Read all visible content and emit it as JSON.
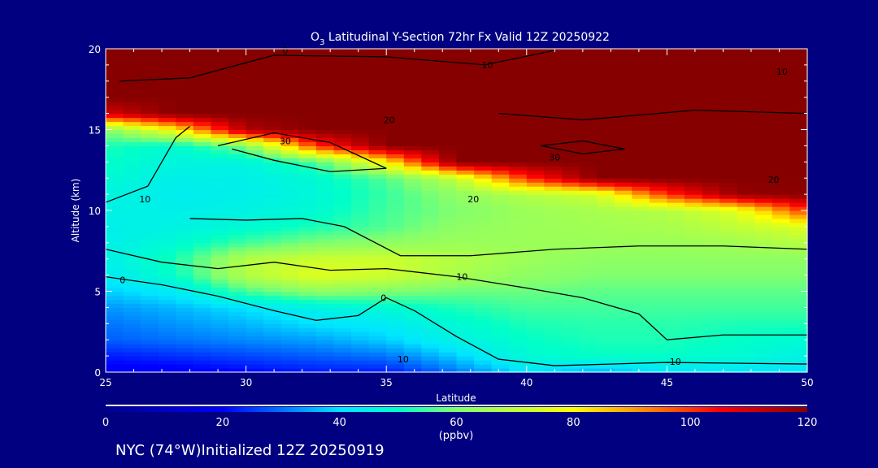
{
  "chart_data": {
    "type": "heatmap",
    "title_species": "O",
    "title_sub": "3",
    "title_rest": " Latitudinal Y-Section 72hr  Fx Valid 12Z 20250922",
    "xlabel": "Latitude",
    "ylabel": "Altitude (km)",
    "xlim": [
      25,
      50
    ],
    "ylim": [
      0,
      20
    ],
    "xticks": [
      25,
      30,
      35,
      40,
      45,
      50
    ],
    "yticks": [
      0,
      5,
      10,
      15,
      20
    ],
    "lat": [
      25,
      27.5,
      30,
      32.5,
      35,
      37.5,
      40,
      42.5,
      45,
      47.5,
      50
    ],
    "alt": [
      0,
      1,
      2,
      3,
      4,
      5,
      6,
      7,
      8,
      9,
      10,
      11,
      12,
      13,
      14,
      15,
      16,
      17,
      18,
      19,
      20
    ],
    "values": [
      [
        18,
        18,
        20,
        22,
        22,
        30,
        40,
        35,
        40,
        40,
        40
      ],
      [
        22,
        24,
        26,
        28,
        30,
        38,
        48,
        50,
        50,
        48,
        45
      ],
      [
        28,
        30,
        32,
        34,
        38,
        45,
        50,
        52,
        52,
        50,
        48
      ],
      [
        30,
        33,
        36,
        40,
        42,
        48,
        52,
        53,
        53,
        52,
        52
      ],
      [
        33,
        36,
        40,
        45,
        48,
        52,
        55,
        55,
        55,
        55,
        55
      ],
      [
        38,
        42,
        55,
        62,
        60,
        58,
        58,
        57,
        57,
        57,
        57
      ],
      [
        42,
        50,
        68,
        75,
        72,
        66,
        62,
        60,
        60,
        60,
        60
      ],
      [
        44,
        52,
        68,
        72,
        72,
        68,
        64,
        62,
        62,
        62,
        62
      ],
      [
        44,
        48,
        55,
        60,
        62,
        64,
        64,
        64,
        64,
        65,
        68
      ],
      [
        44,
        45,
        48,
        52,
        56,
        62,
        64,
        65,
        66,
        70,
        75
      ],
      [
        45,
        44,
        45,
        48,
        55,
        60,
        64,
        66,
        68,
        75,
        100
      ],
      [
        46,
        43,
        44,
        47,
        54,
        62,
        68,
        72,
        100,
        118,
        120
      ],
      [
        48,
        44,
        44,
        48,
        56,
        70,
        100,
        120,
        120,
        120,
        120
      ],
      [
        50,
        46,
        46,
        55,
        80,
        120,
        120,
        120,
        120,
        120,
        120
      ],
      [
        52,
        48,
        60,
        100,
        120,
        120,
        120,
        120,
        120,
        120,
        120
      ],
      [
        60,
        80,
        115,
        120,
        120,
        120,
        120,
        120,
        120,
        120,
        120
      ],
      [
        110,
        120,
        120,
        120,
        120,
        120,
        120,
        120,
        120,
        120,
        120
      ],
      [
        120,
        120,
        120,
        120,
        120,
        120,
        120,
        120,
        120,
        120,
        120
      ],
      [
        120,
        120,
        120,
        120,
        120,
        120,
        120,
        120,
        120,
        120,
        120
      ],
      [
        120,
        120,
        120,
        120,
        120,
        120,
        120,
        120,
        120,
        120,
        120
      ],
      [
        120,
        120,
        120,
        120,
        120,
        120,
        120,
        120,
        120,
        120,
        120
      ]
    ],
    "contour_labels": [
      {
        "text": "0",
        "lat": 31.4,
        "alt": 19.9
      },
      {
        "text": "10",
        "lat": 38.6,
        "alt": 19.0
      },
      {
        "text": "10",
        "lat": 49.1,
        "alt": 18.6
      },
      {
        "text": "20",
        "lat": 35.1,
        "alt": 15.6
      },
      {
        "text": "30",
        "lat": 31.4,
        "alt": 14.3
      },
      {
        "text": "30",
        "lat": 41.0,
        "alt": 13.3
      },
      {
        "text": "20",
        "lat": 48.8,
        "alt": 11.9
      },
      {
        "text": "10",
        "lat": 26.4,
        "alt": 10.7
      },
      {
        "text": "20",
        "lat": 38.1,
        "alt": 10.7
      },
      {
        "text": "10",
        "lat": 37.7,
        "alt": 5.9
      },
      {
        "text": "0",
        "lat": 25.6,
        "alt": 5.7
      },
      {
        "text": "0",
        "lat": 34.9,
        "alt": 4.6
      },
      {
        "text": "10",
        "lat": 35.6,
        "alt": 0.8
      },
      {
        "text": "10",
        "lat": 45.3,
        "alt": 0.65
      }
    ],
    "contours": [
      [
        [
          25,
          5.9
        ],
        [
          27,
          5.4
        ],
        [
          29,
          4.7
        ],
        [
          31,
          3.8
        ],
        [
          32.5,
          3.2
        ],
        [
          34,
          3.5
        ],
        [
          35,
          4.6
        ],
        [
          36,
          3.8
        ],
        [
          37.5,
          2.2
        ],
        [
          39,
          0.8
        ],
        [
          41,
          0.4
        ],
        [
          45,
          0.6
        ],
        [
          50,
          0.5
        ]
      ],
      [
        [
          25,
          7.6
        ],
        [
          27,
          6.8
        ],
        [
          29,
          6.4
        ],
        [
          31,
          6.8
        ],
        [
          33,
          6.3
        ],
        [
          35,
          6.4
        ],
        [
          37.5,
          5.9
        ],
        [
          40,
          5.2
        ],
        [
          42,
          4.6
        ],
        [
          44,
          3.6
        ],
        [
          45,
          2.0
        ],
        [
          47,
          2.3
        ],
        [
          50,
          2.3
        ]
      ],
      [
        [
          25,
          10.5
        ],
        [
          26.5,
          11.5
        ],
        [
          27,
          13
        ],
        [
          27.5,
          14.5
        ],
        [
          28,
          15.2
        ]
      ],
      [
        [
          29,
          14
        ],
        [
          31,
          14.8
        ],
        [
          33,
          14.2
        ],
        [
          35,
          12.6
        ],
        [
          33,
          12.4
        ],
        [
          31,
          13.1
        ],
        [
          29.5,
          13.8
        ]
      ],
      [
        [
          28,
          9.5
        ],
        [
          30,
          9.4
        ],
        [
          32,
          9.5
        ],
        [
          33.5,
          9.0
        ],
        [
          35.5,
          7.2
        ],
        [
          38,
          7.2
        ],
        [
          41,
          7.6
        ],
        [
          44,
          7.8
        ],
        [
          47,
          7.8
        ],
        [
          50,
          7.6
        ]
      ],
      [
        [
          25.5,
          18
        ],
        [
          28,
          18.2
        ],
        [
          31,
          19.6
        ],
        [
          35,
          19.5
        ],
        [
          38.5,
          19.0
        ],
        [
          41,
          19.9
        ]
      ],
      [
        [
          39,
          16
        ],
        [
          42,
          15.6
        ],
        [
          46,
          16.2
        ],
        [
          50,
          16.0
        ]
      ],
      [
        [
          40.5,
          14.0
        ],
        [
          42,
          13.5
        ],
        [
          43.5,
          13.8
        ],
        [
          42,
          14.3
        ],
        [
          40.5,
          14.0
        ]
      ]
    ],
    "colorbar": {
      "ticks": [
        0,
        20,
        40,
        60,
        80,
        100,
        120
      ],
      "label": "(ppbv)",
      "range": [
        0,
        120
      ]
    }
  },
  "footer": "NYC (74°W)Initialized 12Z 20250919"
}
